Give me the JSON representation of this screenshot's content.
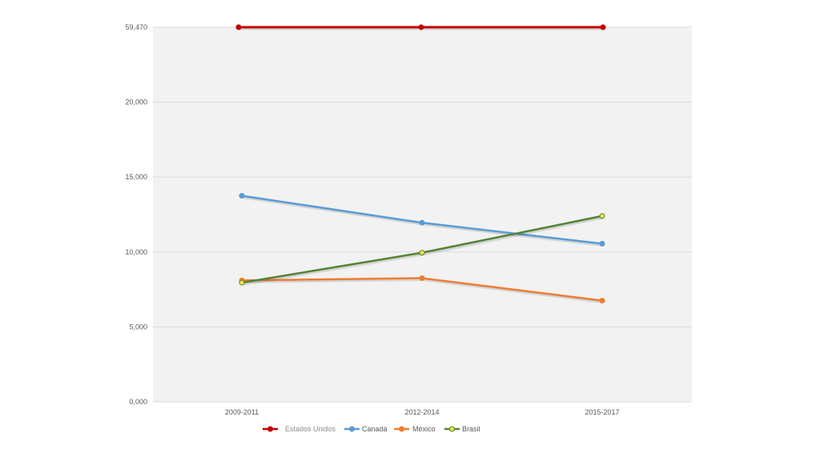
{
  "chart_data": {
    "type": "line",
    "categories": [
      "2009-2011",
      "2012-2014",
      "2015-2017"
    ],
    "y_ticks": [
      "0,000",
      "5,000",
      "10,000",
      "15,000",
      "20,000",
      "59,470"
    ],
    "y_axis_note": "broken axis: top gridline labeled 59,470",
    "grid": true,
    "legend_position": "bottom",
    "series": [
      {
        "name": "Estados Unidos",
        "values": [
          59470,
          59470,
          59470
        ],
        "color": "#c00000"
      },
      {
        "name": "Canadá",
        "values": [
          13750,
          11950,
          10550
        ],
        "color": "#5b9bd5"
      },
      {
        "name": "México",
        "values": [
          8100,
          8250,
          6750
        ],
        "color": "#ed7d31"
      },
      {
        "name": "Brasil",
        "values": [
          7950,
          9950,
          12400
        ],
        "color": "#548235",
        "marker_fill": "#f2e544"
      }
    ],
    "plot_background": "#f2f2f2",
    "gridline_color": "#d9d9d9"
  }
}
